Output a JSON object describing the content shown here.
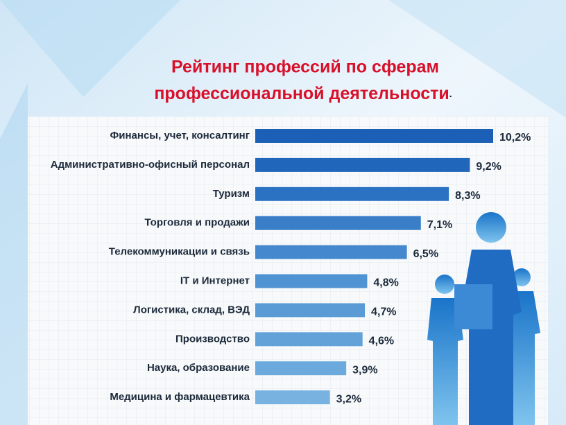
{
  "chart_data": {
    "type": "barh",
    "title": [
      "Рейтинг профессий по сферам",
      "профессиональной  деятельности"
    ],
    "title_end": ".",
    "categories": [
      "Финансы, учет, консалтинг",
      "Административно-офисный персонал",
      "Туризм",
      "Торговля и продажи",
      "Телекоммуникации и связь",
      "IT и Интернет",
      "Логистика, склад, ВЭД",
      "Производство",
      "Наука, образование",
      "Медицина и фармацевтика"
    ],
    "values": [
      10.2,
      9.2,
      8.3,
      7.1,
      6.5,
      4.8,
      4.7,
      4.6,
      3.9,
      3.2
    ],
    "value_labels": [
      "10,2%",
      "9,2%",
      "8,3%",
      "7,1%",
      "6,5%",
      "4,8%",
      "4,7%",
      "4,6%",
      "3,9%",
      "3,2%"
    ],
    "colors": [
      "#1b5fb6",
      "#2066bb",
      "#2c72c2",
      "#3a7ec8",
      "#4588cd",
      "#5093d2",
      "#5a9bd6",
      "#62a2d9",
      "#6caadd",
      "#77b2e0"
    ]
  }
}
